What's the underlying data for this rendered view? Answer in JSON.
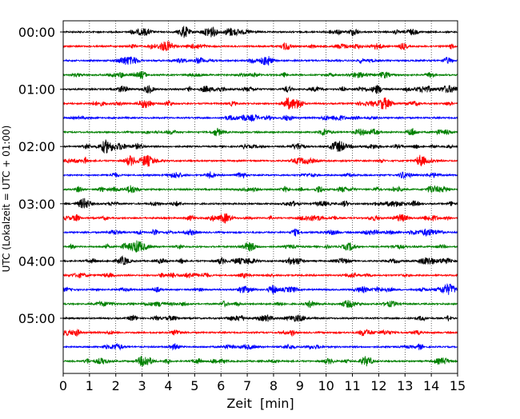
{
  "chart_data": {
    "type": "line",
    "title": "",
    "xlabel": "Zeit  [min]",
    "ylabel": "UTC (Lokalzeit = UTC + 01:00)",
    "xlim": [
      0,
      15
    ],
    "x_ticks": [
      0,
      1,
      2,
      3,
      4,
      5,
      6,
      7,
      8,
      9,
      10,
      11,
      12,
      13,
      14,
      15
    ],
    "x_tick_labels": [
      "0",
      "1",
      "2",
      "3",
      "4",
      "5",
      "6",
      "7",
      "8",
      "9",
      "10",
      "11",
      "12",
      "13",
      "14",
      "15"
    ],
    "y_tick_labels": [
      "00:00",
      "01:00",
      "02:00",
      "03:00",
      "04:00",
      "05:00"
    ],
    "y_tick_row_index": [
      0,
      4,
      8,
      12,
      16,
      20
    ],
    "trace_interval_minutes": 15,
    "grid": "vertical dotted",
    "traces": [
      {
        "start": "00:00",
        "color": "#000000"
      },
      {
        "start": "00:15",
        "color": "#ff0000"
      },
      {
        "start": "00:30",
        "color": "#0000ff"
      },
      {
        "start": "00:45",
        "color": "#008000"
      },
      {
        "start": "01:00",
        "color": "#000000"
      },
      {
        "start": "01:15",
        "color": "#ff0000"
      },
      {
        "start": "01:30",
        "color": "#0000ff"
      },
      {
        "start": "01:45",
        "color": "#008000"
      },
      {
        "start": "02:00",
        "color": "#000000"
      },
      {
        "start": "02:15",
        "color": "#ff0000"
      },
      {
        "start": "02:30",
        "color": "#0000ff"
      },
      {
        "start": "02:45",
        "color": "#008000"
      },
      {
        "start": "03:00",
        "color": "#000000"
      },
      {
        "start": "03:15",
        "color": "#ff0000"
      },
      {
        "start": "03:30",
        "color": "#0000ff"
      },
      {
        "start": "03:45",
        "color": "#008000"
      },
      {
        "start": "04:00",
        "color": "#000000"
      },
      {
        "start": "04:15",
        "color": "#ff0000"
      },
      {
        "start": "04:30",
        "color": "#0000ff"
      },
      {
        "start": "04:45",
        "color": "#008000"
      },
      {
        "start": "05:00",
        "color": "#000000"
      },
      {
        "start": "05:15",
        "color": "#ff0000"
      },
      {
        "start": "05:30",
        "color": "#0000ff"
      },
      {
        "start": "05:45",
        "color": "#008000"
      }
    ]
  }
}
